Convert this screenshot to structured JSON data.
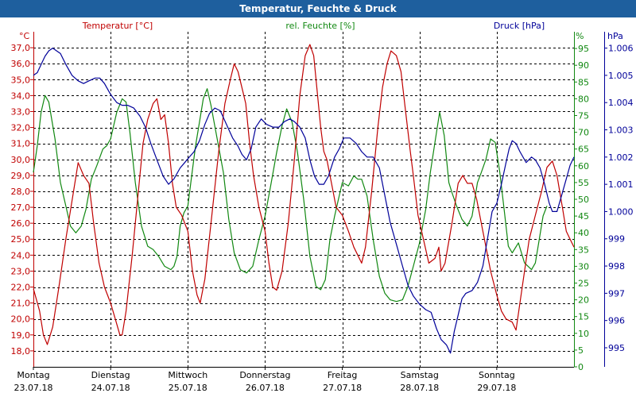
{
  "window": {
    "title": "Temperatur, Feuchte & Druck"
  },
  "colors": {
    "temp": "#c00000",
    "hum": "#118811",
    "press": "#000099",
    "grid": "#000000",
    "title_bg": "#1e5f9e"
  },
  "chart_data": {
    "type": "line",
    "title": "Temperatur, Feuchte & Druck",
    "legend": {
      "temp": "Temperatur [°C]",
      "hum": "rel. Feuchte [%]",
      "press": "Druck [hPa]"
    },
    "axes": {
      "temp": {
        "unit": "°C",
        "min": 17.0,
        "max": 38.0,
        "ticks": [
          "18,0",
          "19,0",
          "20,0",
          "21,0",
          "22,0",
          "23,0",
          "24,0",
          "25,0",
          "26,0",
          "27,0",
          "28,0",
          "29,0",
          "30,0",
          "31,0",
          "32,0",
          "33,0",
          "34,0",
          "35,0",
          "36,0",
          "37,0"
        ]
      },
      "hum": {
        "unit": "%",
        "min": 0,
        "max": 100,
        "ticks": [
          "0",
          "5",
          "10",
          "15",
          "20",
          "25",
          "30",
          "35",
          "40",
          "45",
          "50",
          "55",
          "60",
          "65",
          "70",
          "75",
          "80",
          "85",
          "90",
          "95"
        ]
      },
      "press": {
        "unit": "hPa",
        "min": 994.3,
        "max": 1006.6,
        "ticks": [
          "995",
          "996",
          "997",
          "998",
          "999",
          "1.000",
          "1.001",
          "1.002",
          "1.003",
          "1.004",
          "1.005",
          "1.006"
        ]
      }
    },
    "x_days": [
      {
        "day": "Montag",
        "date": "23.07.18"
      },
      {
        "day": "Dienstag",
        "date": "24.07.18"
      },
      {
        "day": "Mittwoch",
        "date": "25.07.18"
      },
      {
        "day": "Donnerstag",
        "date": "26.07.18"
      },
      {
        "day": "Freitag",
        "date": "27.07.18"
      },
      {
        "day": "Samstag",
        "date": "28.07.18"
      },
      {
        "day": "Sonntag",
        "date": "29.07.18"
      }
    ],
    "x_range_days": [
      0,
      7
    ],
    "series": {
      "temp": [
        [
          0,
          21.9
        ],
        [
          0.08,
          20.5
        ],
        [
          0.13,
          19.0
        ],
        [
          0.18,
          18.4
        ],
        [
          0.25,
          19.5
        ],
        [
          0.33,
          22.0
        ],
        [
          0.42,
          25.0
        ],
        [
          0.52,
          28.0
        ],
        [
          0.58,
          29.8
        ],
        [
          0.65,
          29.0
        ],
        [
          0.72,
          28.5
        ],
        [
          0.78,
          26.0
        ],
        [
          0.85,
          23.5
        ],
        [
          0.92,
          22.0
        ],
        [
          1.0,
          21.0
        ],
        [
          1.06,
          20.0
        ],
        [
          1.12,
          19.0
        ],
        [
          1.15,
          19.0
        ],
        [
          1.2,
          20.5
        ],
        [
          1.28,
          24.0
        ],
        [
          1.35,
          27.5
        ],
        [
          1.42,
          31.0
        ],
        [
          1.48,
          32.5
        ],
        [
          1.55,
          33.5
        ],
        [
          1.6,
          33.8
        ],
        [
          1.65,
          32.5
        ],
        [
          1.7,
          32.8
        ],
        [
          1.75,
          31.0
        ],
        [
          1.8,
          28.5
        ],
        [
          1.85,
          27.0
        ],
        [
          1.92,
          26.5
        ],
        [
          2.0,
          25.5
        ],
        [
          2.06,
          23.0
        ],
        [
          2.12,
          21.5
        ],
        [
          2.16,
          21.0
        ],
        [
          2.22,
          22.5
        ],
        [
          2.3,
          26.0
        ],
        [
          2.4,
          30.5
        ],
        [
          2.48,
          33.5
        ],
        [
          2.55,
          35.0
        ],
        [
          2.6,
          36.0
        ],
        [
          2.65,
          35.5
        ],
        [
          2.7,
          34.5
        ],
        [
          2.75,
          33.5
        ],
        [
          2.8,
          31.0
        ],
        [
          2.85,
          29.0
        ],
        [
          2.92,
          27.0
        ],
        [
          3.0,
          25.5
        ],
        [
          3.05,
          23.5
        ],
        [
          3.1,
          22.0
        ],
        [
          3.15,
          21.8
        ],
        [
          3.22,
          23.0
        ],
        [
          3.3,
          26.0
        ],
        [
          3.38,
          30.0
        ],
        [
          3.45,
          34.0
        ],
        [
          3.52,
          36.5
        ],
        [
          3.58,
          37.2
        ],
        [
          3.63,
          36.5
        ],
        [
          3.68,
          34.0
        ],
        [
          3.72,
          32.0
        ],
        [
          3.76,
          30.5
        ],
        [
          3.8,
          30.0
        ],
        [
          3.86,
          28.5
        ],
        [
          3.92,
          27.0
        ],
        [
          4.0,
          26.5
        ],
        [
          4.08,
          25.5
        ],
        [
          4.15,
          24.5
        ],
        [
          4.2,
          24.0
        ],
        [
          4.25,
          23.5
        ],
        [
          4.3,
          24.5
        ],
        [
          4.38,
          28.0
        ],
        [
          4.46,
          32.0
        ],
        [
          4.52,
          34.5
        ],
        [
          4.58,
          36.0
        ],
        [
          4.63,
          36.8
        ],
        [
          4.7,
          36.5
        ],
        [
          4.76,
          35.5
        ],
        [
          4.82,
          33.0
        ],
        [
          4.88,
          30.5
        ],
        [
          4.92,
          29.0
        ],
        [
          4.98,
          26.5
        ],
        [
          5.05,
          25.0
        ],
        [
          5.12,
          23.5
        ],
        [
          5.2,
          23.8
        ],
        [
          5.25,
          24.5
        ],
        [
          5.28,
          23.0
        ],
        [
          5.33,
          23.5
        ],
        [
          5.42,
          26.0
        ],
        [
          5.5,
          28.5
        ],
        [
          5.56,
          29.0
        ],
        [
          5.62,
          28.5
        ],
        [
          5.68,
          28.5
        ],
        [
          5.74,
          27.5
        ],
        [
          5.8,
          26.0
        ],
        [
          5.86,
          24.5
        ],
        [
          5.92,
          23.0
        ],
        [
          6.0,
          21.5
        ],
        [
          6.06,
          20.5
        ],
        [
          6.12,
          20.0
        ],
        [
          6.2,
          19.8
        ],
        [
          6.25,
          19.3
        ],
        [
          6.3,
          21.0
        ],
        [
          6.36,
          23.0
        ],
        [
          6.42,
          25.0
        ],
        [
          6.5,
          26.5
        ],
        [
          6.58,
          28.0
        ],
        [
          6.65,
          29.5
        ],
        [
          6.72,
          29.9
        ],
        [
          6.78,
          29.0
        ],
        [
          6.85,
          27.0
        ],
        [
          6.9,
          25.5
        ],
        [
          6.95,
          25.0
        ],
        [
          7.0,
          24.5
        ]
      ],
      "hum": [
        [
          0,
          58
        ],
        [
          0.05,
          66
        ],
        [
          0.1,
          76
        ],
        [
          0.15,
          81
        ],
        [
          0.2,
          79
        ],
        [
          0.28,
          68
        ],
        [
          0.35,
          55
        ],
        [
          0.42,
          48
        ],
        [
          0.48,
          42
        ],
        [
          0.55,
          40
        ],
        [
          0.62,
          42
        ],
        [
          0.68,
          47
        ],
        [
          0.75,
          56
        ],
        [
          0.82,
          60
        ],
        [
          0.9,
          65
        ],
        [
          0.95,
          66
        ],
        [
          1.0,
          68
        ],
        [
          1.08,
          76
        ],
        [
          1.15,
          80
        ],
        [
          1.2,
          79
        ],
        [
          1.25,
          70
        ],
        [
          1.32,
          55
        ],
        [
          1.4,
          42
        ],
        [
          1.48,
          36
        ],
        [
          1.55,
          35
        ],
        [
          1.62,
          33
        ],
        [
          1.7,
          30
        ],
        [
          1.78,
          29
        ],
        [
          1.82,
          30
        ],
        [
          1.86,
          33
        ],
        [
          1.9,
          42
        ],
        [
          1.95,
          46
        ],
        [
          2.0,
          48
        ],
        [
          2.05,
          57
        ],
        [
          2.1,
          66
        ],
        [
          2.15,
          73
        ],
        [
          2.2,
          80
        ],
        [
          2.25,
          83
        ],
        [
          2.3,
          78
        ],
        [
          2.38,
          68
        ],
        [
          2.46,
          58
        ],
        [
          2.53,
          44
        ],
        [
          2.6,
          34
        ],
        [
          2.68,
          29
        ],
        [
          2.76,
          28
        ],
        [
          2.84,
          30
        ],
        [
          2.92,
          38
        ],
        [
          3.0,
          45
        ],
        [
          3.08,
          55
        ],
        [
          3.15,
          64
        ],
        [
          3.22,
          72
        ],
        [
          3.28,
          77
        ],
        [
          3.35,
          73
        ],
        [
          3.42,
          64
        ],
        [
          3.5,
          50
        ],
        [
          3.58,
          33
        ],
        [
          3.66,
          24
        ],
        [
          3.72,
          23
        ],
        [
          3.78,
          26
        ],
        [
          3.84,
          38
        ],
        [
          3.9,
          45
        ],
        [
          3.95,
          50
        ],
        [
          4.0,
          55
        ],
        [
          4.08,
          54
        ],
        [
          4.15,
          57
        ],
        [
          4.2,
          56
        ],
        [
          4.25,
          56
        ],
        [
          4.32,
          51
        ],
        [
          4.4,
          38
        ],
        [
          4.48,
          27
        ],
        [
          4.55,
          22
        ],
        [
          4.62,
          20
        ],
        [
          4.7,
          19.5
        ],
        [
          4.78,
          20
        ],
        [
          4.85,
          24
        ],
        [
          4.92,
          30
        ],
        [
          5.0,
          37
        ],
        [
          5.08,
          47
        ],
        [
          5.14,
          58
        ],
        [
          5.2,
          67
        ],
        [
          5.26,
          76
        ],
        [
          5.32,
          69
        ],
        [
          5.38,
          55
        ],
        [
          5.42,
          52
        ],
        [
          5.48,
          48
        ],
        [
          5.55,
          44
        ],
        [
          5.62,
          42
        ],
        [
          5.68,
          45
        ],
        [
          5.75,
          55
        ],
        [
          5.8,
          58
        ],
        [
          5.86,
          62
        ],
        [
          5.92,
          68
        ],
        [
          5.98,
          67
        ],
        [
          6.04,
          58
        ],
        [
          6.1,
          46
        ],
        [
          6.15,
          36
        ],
        [
          6.2,
          34
        ],
        [
          6.28,
          37
        ],
        [
          6.36,
          31
        ],
        [
          6.45,
          29
        ],
        [
          6.5,
          31
        ],
        [
          6.55,
          38
        ],
        [
          6.6,
          45
        ],
        [
          6.65,
          48
        ]
      ],
      "press": [
        [
          0,
          1005.0
        ],
        [
          0.05,
          1005.1
        ],
        [
          0.1,
          1005.4
        ],
        [
          0.15,
          1005.7
        ],
        [
          0.2,
          1005.9
        ],
        [
          0.25,
          1006.0
        ],
        [
          0.3,
          1005.9
        ],
        [
          0.35,
          1005.8
        ],
        [
          0.42,
          1005.4
        ],
        [
          0.5,
          1005.0
        ],
        [
          0.58,
          1004.8
        ],
        [
          0.65,
          1004.7
        ],
        [
          0.72,
          1004.8
        ],
        [
          0.8,
          1004.9
        ],
        [
          0.86,
          1004.9
        ],
        [
          0.92,
          1004.7
        ],
        [
          1.0,
          1004.3
        ],
        [
          1.08,
          1004.0
        ],
        [
          1.15,
          1003.9
        ],
        [
          1.22,
          1003.9
        ],
        [
          1.3,
          1003.8
        ],
        [
          1.38,
          1003.5
        ],
        [
          1.45,
          1003.1
        ],
        [
          1.52,
          1002.5
        ],
        [
          1.6,
          1001.9
        ],
        [
          1.68,
          1001.3
        ],
        [
          1.75,
          1001.0
        ],
        [
          1.82,
          1001.2
        ],
        [
          1.9,
          1001.6
        ],
        [
          1.96,
          1001.8
        ],
        [
          2.02,
          1002.0
        ],
        [
          2.08,
          1002.2
        ],
        [
          2.15,
          1002.6
        ],
        [
          2.22,
          1003.2
        ],
        [
          2.28,
          1003.6
        ],
        [
          2.35,
          1003.8
        ],
        [
          2.42,
          1003.7
        ],
        [
          2.5,
          1003.2
        ],
        [
          2.58,
          1002.7
        ],
        [
          2.65,
          1002.4
        ],
        [
          2.7,
          1002.1
        ],
        [
          2.76,
          1001.9
        ],
        [
          2.82,
          1002.3
        ],
        [
          2.88,
          1003.1
        ],
        [
          2.95,
          1003.4
        ],
        [
          3.02,
          1003.2
        ],
        [
          3.1,
          1003.1
        ],
        [
          3.18,
          1003.1
        ],
        [
          3.25,
          1003.3
        ],
        [
          3.32,
          1003.4
        ],
        [
          3.38,
          1003.3
        ],
        [
          3.45,
          1003.1
        ],
        [
          3.52,
          1002.7
        ],
        [
          3.58,
          1001.9
        ],
        [
          3.64,
          1001.3
        ],
        [
          3.7,
          1001.0
        ],
        [
          3.76,
          1001.0
        ],
        [
          3.82,
          1001.3
        ],
        [
          3.9,
          1002.0
        ],
        [
          3.96,
          1002.3
        ],
        [
          4.02,
          1002.7
        ],
        [
          4.1,
          1002.7
        ],
        [
          4.18,
          1002.5
        ],
        [
          4.25,
          1002.2
        ],
        [
          4.32,
          1002.0
        ],
        [
          4.4,
          1002.0
        ],
        [
          4.48,
          1001.6
        ],
        [
          4.55,
          1000.6
        ],
        [
          4.62,
          999.6
        ],
        [
          4.7,
          998.8
        ],
        [
          4.78,
          998.0
        ],
        [
          4.85,
          997.3
        ],
        [
          4.92,
          996.9
        ],
        [
          5.0,
          996.6
        ],
        [
          5.08,
          996.4
        ],
        [
          5.15,
          996.3
        ],
        [
          5.22,
          995.7
        ],
        [
          5.28,
          995.3
        ],
        [
          5.35,
          995.1
        ],
        [
          5.4,
          994.8
        ],
        [
          5.45,
          995.6
        ],
        [
          5.5,
          996.2
        ],
        [
          5.55,
          996.8
        ],
        [
          5.6,
          997.0
        ],
        [
          5.68,
          997.1
        ],
        [
          5.75,
          997.4
        ],
        [
          5.82,
          998.0
        ],
        [
          5.88,
          999.0
        ],
        [
          5.94,
          1000.0
        ],
        [
          6.0,
          1000.3
        ],
        [
          6.06,
          1001.0
        ],
        [
          6.12,
          1001.8
        ],
        [
          6.16,
          1002.3
        ],
        [
          6.2,
          1002.6
        ],
        [
          6.25,
          1002.5
        ],
        [
          6.3,
          1002.2
        ],
        [
          6.38,
          1001.8
        ],
        [
          6.45,
          1002.0
        ],
        [
          6.5,
          1001.9
        ],
        [
          6.56,
          1001.6
        ],
        [
          6.62,
          1001.0
        ],
        [
          6.68,
          1000.3
        ],
        [
          6.72,
          1000.0
        ],
        [
          6.78,
          1000.0
        ],
        [
          6.84,
          1000.6
        ],
        [
          6.9,
          1001.2
        ],
        [
          6.95,
          1001.7
        ],
        [
          7.0,
          1002.0
        ]
      ]
    }
  }
}
